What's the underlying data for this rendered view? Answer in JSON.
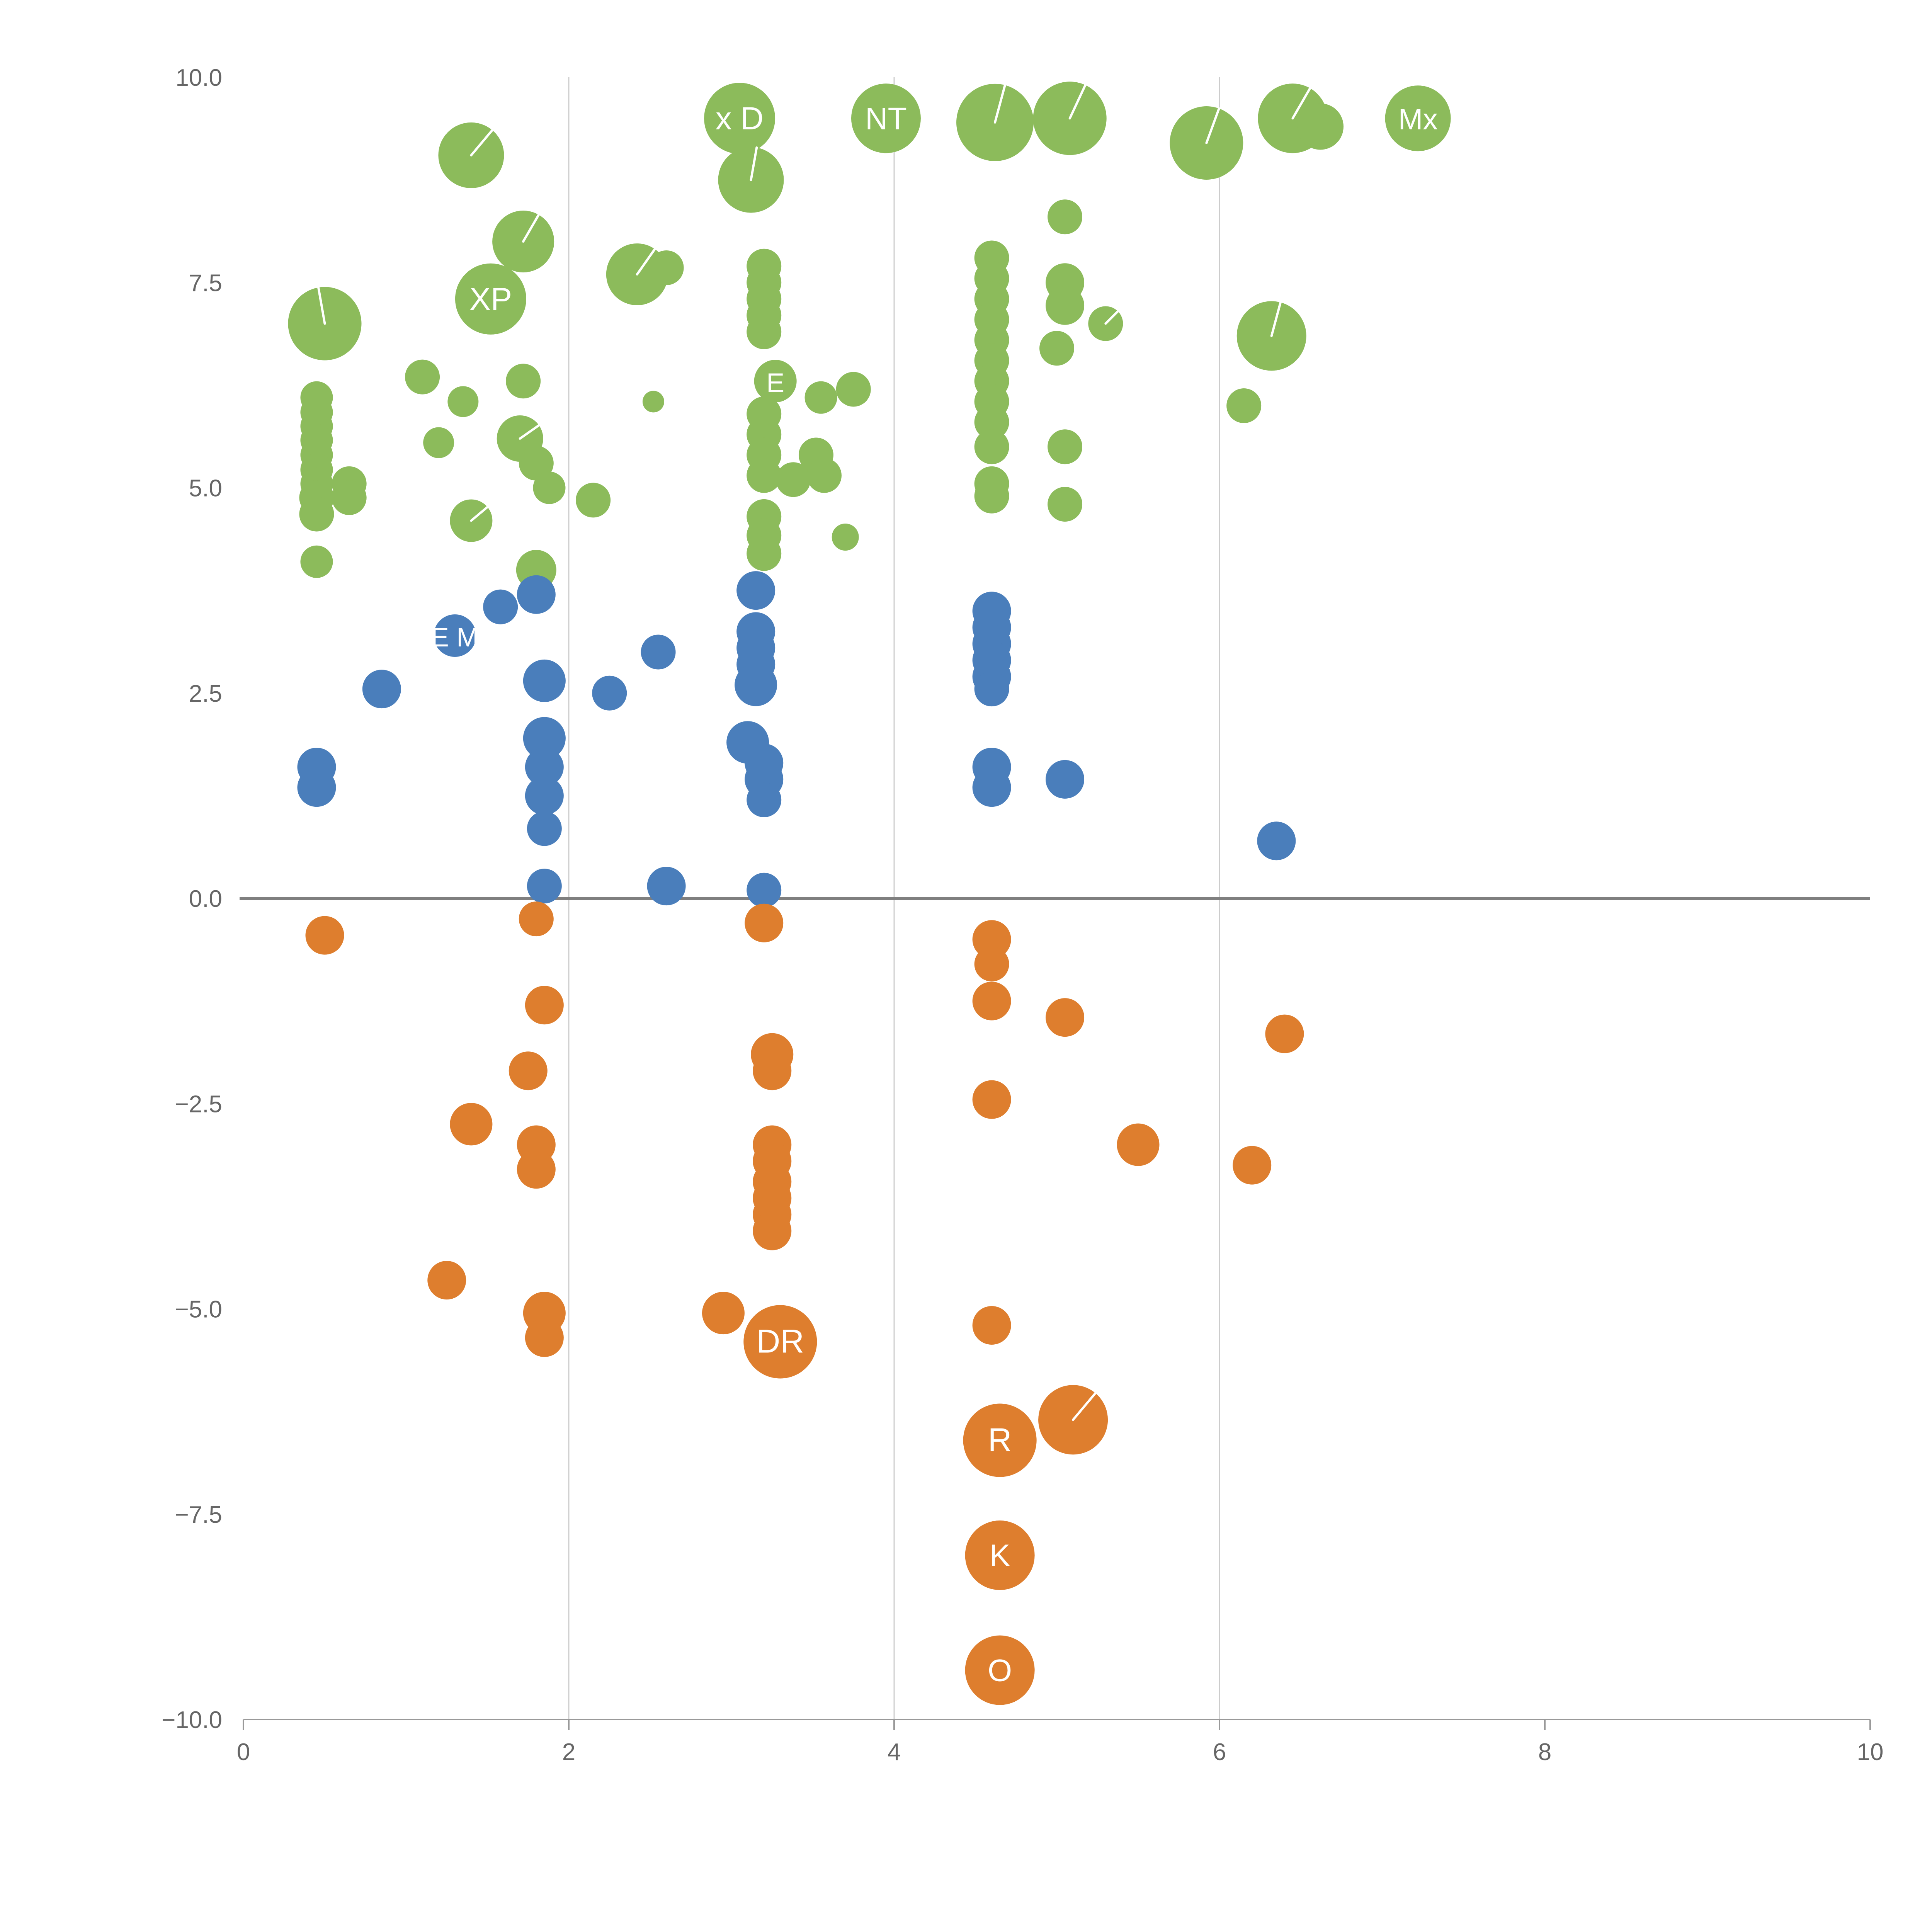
{
  "chart_data": {
    "type": "scatter",
    "title": "",
    "xlabel": "",
    "ylabel": "",
    "xlim": [
      0,
      10
    ],
    "ylim": [
      -10,
      10
    ],
    "x_tick_values": [
      0,
      2,
      4,
      6,
      8,
      10
    ],
    "x_tick_labels": [
      "0",
      "2",
      "4",
      "6",
      "8",
      "10"
    ],
    "y_tick_values": [
      10.0,
      7.5,
      5.0,
      2.5,
      0.0,
      -2.5,
      -5.0,
      -7.5,
      -10.0
    ],
    "y_tick_labels": [
      "10.0",
      "7.5",
      "5.0",
      "2.5",
      "0.0",
      "−2.5",
      "−5.0",
      "−7.5",
      "−10.0"
    ],
    "vertical_gridlines_x": [
      2,
      4,
      6
    ],
    "zero_line_y": 0,
    "grid_color": "#cccccc",
    "zero_line_color": "#7f7f7f",
    "axis_line_color": "#999999",
    "tick_label_color": "#666666",
    "legend": "none",
    "series": [
      {
        "name": "green-group",
        "color": "#8CBB5B",
        "points": [
          [
            0.5,
            7.0,
            95,
            "",
            100
          ],
          [
            0.45,
            6.1,
            42
          ],
          [
            0.45,
            5.92,
            42
          ],
          [
            0.45,
            5.75,
            42
          ],
          [
            0.45,
            5.58,
            42
          ],
          [
            0.45,
            5.4,
            42
          ],
          [
            0.45,
            5.22,
            42
          ],
          [
            0.45,
            5.05,
            42
          ],
          [
            0.45,
            4.88,
            45
          ],
          [
            0.45,
            4.68,
            45
          ],
          [
            0.45,
            4.1,
            42
          ],
          [
            0.65,
            5.05,
            45
          ],
          [
            0.65,
            4.88,
            45
          ],
          [
            1.1,
            6.35,
            45
          ],
          [
            1.2,
            5.55,
            40
          ],
          [
            1.35,
            6.05,
            40
          ],
          [
            1.4,
            9.05,
            85,
            "",
            50
          ],
          [
            1.4,
            4.6,
            55,
            "",
            40
          ],
          [
            1.52,
            7.3,
            92,
            "XP"
          ],
          [
            1.72,
            8.0,
            80,
            "",
            60
          ],
          [
            1.72,
            6.3,
            45
          ],
          [
            1.7,
            5.6,
            60,
            "",
            35
          ],
          [
            1.8,
            5.3,
            45
          ],
          [
            1.88,
            5.0,
            42
          ],
          [
            1.8,
            4.0,
            52
          ],
          [
            2.15,
            4.85,
            45
          ],
          [
            2.42,
            7.6,
            80,
            "",
            55
          ],
          [
            2.6,
            7.68,
            45
          ],
          [
            2.52,
            6.05,
            28
          ],
          [
            3.05,
            9.5,
            92,
            "x D"
          ],
          [
            3.12,
            8.75,
            85,
            "",
            80
          ],
          [
            3.2,
            7.7,
            45
          ],
          [
            3.2,
            7.5,
            45
          ],
          [
            3.2,
            7.3,
            45
          ],
          [
            3.2,
            7.1,
            45
          ],
          [
            3.2,
            6.9,
            45
          ],
          [
            3.27,
            6.3,
            55,
            "E"
          ],
          [
            3.2,
            5.9,
            45
          ],
          [
            3.2,
            5.65,
            45
          ],
          [
            3.2,
            5.4,
            45
          ],
          [
            3.2,
            5.15,
            45
          ],
          [
            3.38,
            5.1,
            45
          ],
          [
            3.2,
            4.65,
            45
          ],
          [
            3.2,
            4.42,
            45
          ],
          [
            3.2,
            4.2,
            45
          ],
          [
            3.52,
            5.4,
            45
          ],
          [
            3.57,
            5.15,
            45
          ],
          [
            3.55,
            6.1,
            42
          ],
          [
            3.75,
            6.2,
            45
          ],
          [
            3.7,
            4.4,
            35
          ],
          [
            3.95,
            9.5,
            90,
            "NT"
          ],
          [
            4.62,
            9.45,
            100,
            "",
            75
          ],
          [
            5.08,
            9.5,
            95,
            "",
            65
          ],
          [
            4.6,
            7.8,
            45
          ],
          [
            4.6,
            7.55,
            45
          ],
          [
            4.6,
            7.3,
            45
          ],
          [
            4.6,
            7.05,
            45
          ],
          [
            4.6,
            6.8,
            45
          ],
          [
            4.6,
            6.55,
            45
          ],
          [
            4.6,
            6.3,
            45
          ],
          [
            4.6,
            6.05,
            45
          ],
          [
            4.6,
            5.8,
            45
          ],
          [
            4.6,
            5.5,
            45
          ],
          [
            4.6,
            5.05,
            45
          ],
          [
            4.6,
            4.9,
            45
          ],
          [
            5.05,
            8.3,
            45
          ],
          [
            5.05,
            7.5,
            50
          ],
          [
            5.05,
            7.22,
            50
          ],
          [
            5.0,
            6.7,
            45
          ],
          [
            5.3,
            7.0,
            45,
            "",
            45
          ],
          [
            5.05,
            5.5,
            45
          ],
          [
            5.05,
            4.8,
            45
          ],
          [
            5.92,
            9.2,
            95,
            "",
            70
          ],
          [
            6.45,
            9.5,
            90,
            "",
            60
          ],
          [
            6.62,
            9.4,
            60
          ],
          [
            7.22,
            9.5,
            85,
            "Mx"
          ],
          [
            6.32,
            6.85,
            90,
            "",
            75
          ],
          [
            6.15,
            6.0,
            45
          ]
        ]
      },
      {
        "name": "blue-group",
        "color": "#4A7EBB",
        "points": [
          [
            0.45,
            1.6,
            50
          ],
          [
            0.45,
            1.35,
            50
          ],
          [
            0.85,
            2.55,
            50
          ],
          [
            1.3,
            3.2,
            55,
            "E M"
          ],
          [
            1.58,
            3.55,
            45
          ],
          [
            1.8,
            3.7,
            50
          ],
          [
            1.85,
            2.65,
            55
          ],
          [
            1.85,
            1.95,
            55
          ],
          [
            1.85,
            1.6,
            50
          ],
          [
            1.85,
            1.25,
            50
          ],
          [
            1.85,
            0.85,
            45
          ],
          [
            1.85,
            0.15,
            45
          ],
          [
            2.25,
            2.5,
            45
          ],
          [
            2.55,
            3.0,
            45
          ],
          [
            2.6,
            0.15,
            50
          ],
          [
            3.15,
            3.75,
            50
          ],
          [
            3.15,
            3.25,
            50
          ],
          [
            3.15,
            3.05,
            50
          ],
          [
            3.15,
            2.85,
            50
          ],
          [
            3.15,
            2.6,
            55
          ],
          [
            3.1,
            1.9,
            55
          ],
          [
            3.2,
            1.65,
            50
          ],
          [
            3.2,
            1.45,
            50
          ],
          [
            3.2,
            1.2,
            45
          ],
          [
            3.2,
            0.1,
            45
          ],
          [
            4.6,
            3.5,
            50
          ],
          [
            4.6,
            3.3,
            50
          ],
          [
            4.6,
            3.1,
            50
          ],
          [
            4.6,
            2.9,
            50
          ],
          [
            4.6,
            2.7,
            50
          ],
          [
            4.6,
            2.55,
            45
          ],
          [
            4.6,
            1.6,
            50
          ],
          [
            4.6,
            1.35,
            50
          ],
          [
            5.05,
            1.45,
            50
          ],
          [
            6.35,
            0.7,
            50
          ]
        ]
      },
      {
        "name": "orange-group",
        "color": "#DE7E2E",
        "points": [
          [
            0.5,
            -0.45,
            50
          ],
          [
            1.8,
            -0.25,
            45
          ],
          [
            1.85,
            -1.3,
            50
          ],
          [
            1.75,
            -2.1,
            50
          ],
          [
            1.4,
            -2.75,
            55
          ],
          [
            1.8,
            -3.0,
            50
          ],
          [
            1.8,
            -3.3,
            50
          ],
          [
            1.25,
            -4.65,
            50
          ],
          [
            1.85,
            -5.05,
            55
          ],
          [
            1.85,
            -5.35,
            50
          ],
          [
            2.95,
            -5.05,
            55
          ],
          [
            3.2,
            -0.3,
            50
          ],
          [
            3.25,
            -1.9,
            55
          ],
          [
            3.25,
            -2.1,
            50
          ],
          [
            3.25,
            -3.0,
            50
          ],
          [
            3.25,
            -3.2,
            50
          ],
          [
            3.25,
            -3.45,
            50
          ],
          [
            3.25,
            -3.65,
            50
          ],
          [
            3.25,
            -3.85,
            50
          ],
          [
            3.25,
            -4.05,
            50
          ],
          [
            3.3,
            -5.4,
            95,
            "DR"
          ],
          [
            4.6,
            -0.5,
            50
          ],
          [
            4.6,
            -0.8,
            45
          ],
          [
            4.6,
            -1.25,
            50
          ],
          [
            5.05,
            -1.45,
            50
          ],
          [
            6.4,
            -1.65,
            50
          ],
          [
            4.6,
            -2.45,
            50
          ],
          [
            5.5,
            -3.0,
            55
          ],
          [
            6.2,
            -3.25,
            50
          ],
          [
            4.6,
            -5.2,
            50
          ],
          [
            4.65,
            -6.6,
            95,
            "R"
          ],
          [
            5.1,
            -6.35,
            90,
            "",
            50
          ],
          [
            4.65,
            -8.0,
            90,
            "K"
          ],
          [
            4.65,
            -9.4,
            90,
            "O"
          ]
        ]
      }
    ]
  }
}
